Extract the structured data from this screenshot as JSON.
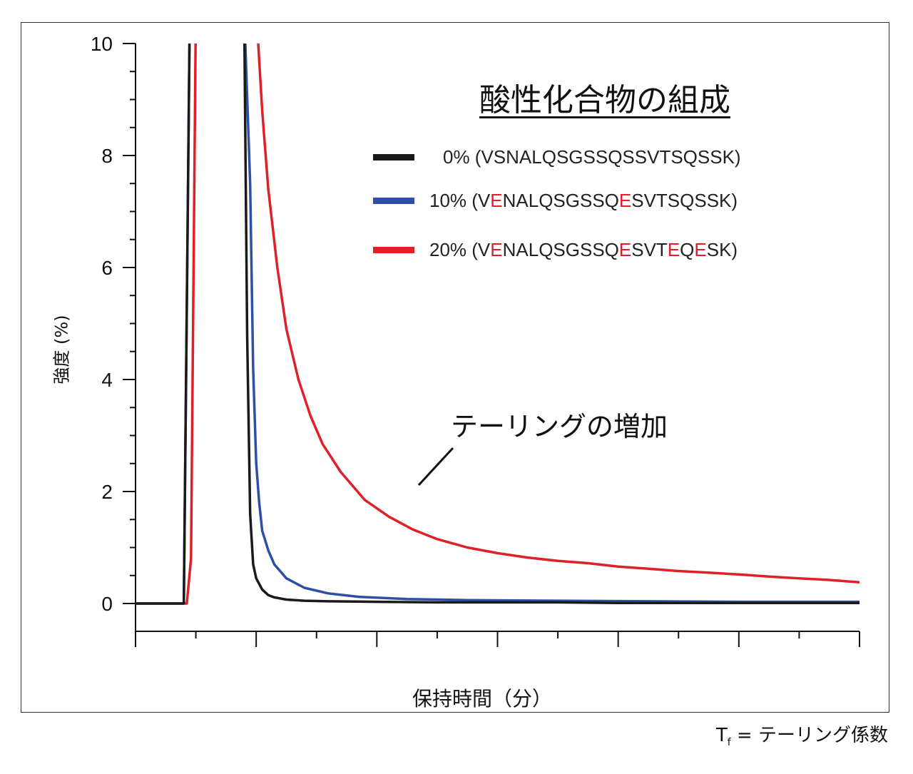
{
  "chart_data": {
    "type": "line",
    "title": "",
    "xlabel": "保持時間（分）",
    "ylabel": "強度 (%)",
    "ylim": [
      0,
      10
    ],
    "yticks": [
      "0",
      "2",
      "4",
      "6",
      "8",
      "10"
    ],
    "grid": false,
    "legend_title": "酸性化合物の組成",
    "legend_placement": "top-right",
    "annotation": "テーリングの増加",
    "series": [
      {
        "name": "0% (VSNALQSGSSQSSVTSQSSK)",
        "label_parts": [
          {
            "text": "0% (VSNALQSGSSQSSVTSQSSK)",
            "red": false
          }
        ],
        "color": "#1a1a1a",
        "x": [
          0,
          0.8,
          0.9,
          1.8,
          1.85,
          1.9,
          1.95,
          2.0,
          2.1,
          2.2,
          2.3,
          2.5,
          2.8,
          3.2,
          4,
          5,
          6,
          7,
          8,
          9,
          10,
          11,
          12
        ],
        "y": [
          0,
          0,
          10.6,
          10.6,
          4.8,
          1.6,
          0.7,
          0.45,
          0.25,
          0.15,
          0.11,
          0.07,
          0.05,
          0.04,
          0.03,
          0.02,
          0.02,
          0.02,
          0.01,
          0.01,
          0.01,
          0.01,
          0.01
        ]
      },
      {
        "name": "10% (VENALQSGSSQESVTSQSSK)",
        "label_parts": [
          {
            "text": "10% (V",
            "red": false
          },
          {
            "text": "E",
            "red": true
          },
          {
            "text": "NALQSGSSQ",
            "red": false
          },
          {
            "text": "E",
            "red": true
          },
          {
            "text": "SVTSQSSK)",
            "red": false
          }
        ],
        "color": "#2e4fa3",
        "x": [
          0,
          0.8,
          0.9,
          1.8,
          1.9,
          1.95,
          2.0,
          2.05,
          2.1,
          2.2,
          2.3,
          2.5,
          2.8,
          3.2,
          3.7,
          4.5,
          5.5,
          7,
          8.5,
          10,
          12
        ],
        "y": [
          0,
          0,
          10.6,
          10.6,
          7.5,
          4.2,
          2.5,
          1.8,
          1.3,
          0.95,
          0.7,
          0.45,
          0.28,
          0.18,
          0.12,
          0.08,
          0.06,
          0.05,
          0.04,
          0.03,
          0.03
        ]
      },
      {
        "name": "20% (VENALQSGSSQESVTEQESK)",
        "label_parts": [
          {
            "text": "20% (V",
            "red": false
          },
          {
            "text": "E",
            "red": true
          },
          {
            "text": "NALQSGSSQ",
            "red": false
          },
          {
            "text": "E",
            "red": true
          },
          {
            "text": "SVT",
            "red": false
          },
          {
            "text": "E",
            "red": true
          },
          {
            "text": "Q",
            "red": false
          },
          {
            "text": "E",
            "red": true
          },
          {
            "text": "SK)",
            "red": false
          }
        ],
        "color": "#e02028",
        "x": [
          0,
          0.85,
          0.92,
          1.0,
          2.0,
          2.1,
          2.2,
          2.35,
          2.5,
          2.7,
          2.9,
          3.1,
          3.4,
          3.8,
          4.2,
          4.6,
          5.0,
          5.5,
          6.0,
          6.5,
          7.0,
          7.5,
          8.0,
          8.5,
          9.0,
          9.5,
          10,
          10.5,
          11,
          11.5,
          12
        ],
        "y": [
          0,
          0,
          0.8,
          10.6,
          10.6,
          8.8,
          7.4,
          6.0,
          4.9,
          4.0,
          3.35,
          2.85,
          2.35,
          1.85,
          1.55,
          1.32,
          1.15,
          1.0,
          0.9,
          0.82,
          0.76,
          0.72,
          0.66,
          0.62,
          0.58,
          0.55,
          0.52,
          0.48,
          0.45,
          0.42,
          0.38
        ]
      }
    ]
  },
  "footnote": {
    "prefix": "T",
    "sub": "f",
    "suffix": " = テーリング係数"
  }
}
